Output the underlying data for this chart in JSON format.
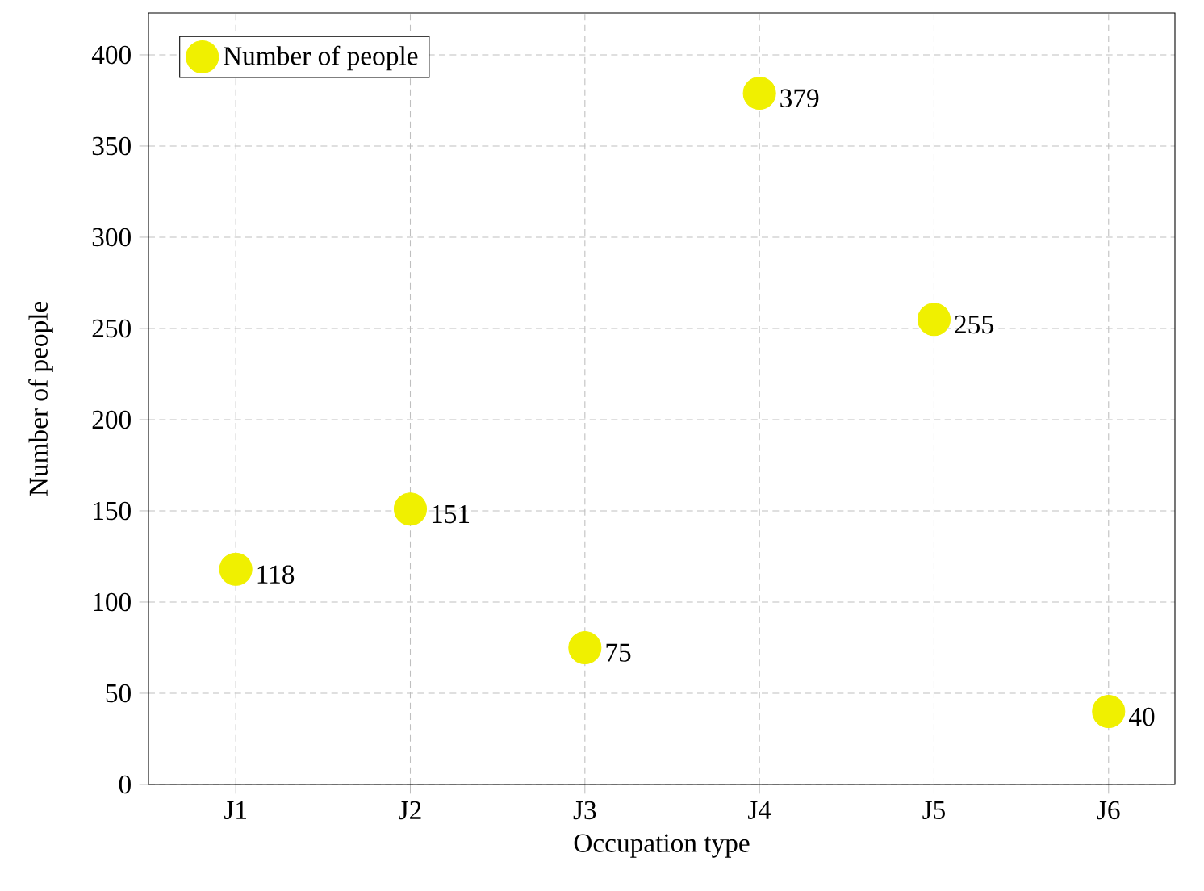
{
  "chart_data": {
    "type": "scatter",
    "xlabel": "Occupation type",
    "ylabel": "Number of people",
    "categories": [
      "J1",
      "J2",
      "J3",
      "J4",
      "J5",
      "J6"
    ],
    "series": [
      {
        "name": "Number of people",
        "color": "#f0f000",
        "values": [
          118,
          151,
          75,
          379,
          255,
          40
        ]
      }
    ],
    "ylim": [
      0,
      423
    ],
    "yticks": [
      0,
      50,
      100,
      150,
      200,
      250,
      300,
      350,
      400
    ],
    "grid": true,
    "legend": "top left",
    "data_labels": true
  }
}
